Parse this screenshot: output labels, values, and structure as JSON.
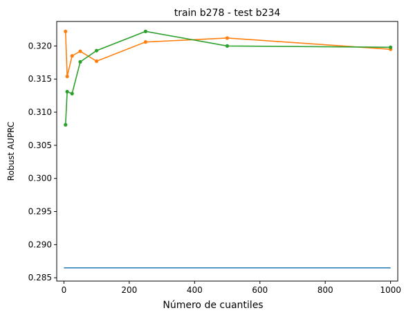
{
  "chart_data": {
    "type": "line",
    "title": "train b278 - test b234",
    "xlabel": "Número de cuantiles",
    "ylabel": "Robust AUPRC",
    "xlim": [
      -22,
      1022
    ],
    "ylim": [
      0.2845,
      0.3237
    ],
    "xticks": [
      0,
      200,
      400,
      600,
      800,
      1000
    ],
    "yticks": [
      0.285,
      0.29,
      0.295,
      0.3,
      0.305,
      0.31,
      0.315,
      0.32
    ],
    "grid": false,
    "legend": "none",
    "series": [
      {
        "color": "#1f77b4",
        "marker": false,
        "x": [
          0,
          1000
        ],
        "y": [
          0.2865,
          0.2865
        ]
      },
      {
        "color": "#ff7f0e",
        "marker": true,
        "x": [
          5,
          10,
          25,
          50,
          100,
          250,
          500,
          1000
        ],
        "y": [
          0.3222,
          0.3154,
          0.3185,
          0.3192,
          0.3177,
          0.3206,
          0.3212,
          0.3195
        ]
      },
      {
        "color": "#2ca02c",
        "marker": true,
        "x": [
          5,
          10,
          25,
          50,
          100,
          250,
          500,
          1000
        ],
        "y": [
          0.3081,
          0.3131,
          0.3128,
          0.3176,
          0.3193,
          0.3222,
          0.32,
          0.3198
        ]
      }
    ]
  }
}
